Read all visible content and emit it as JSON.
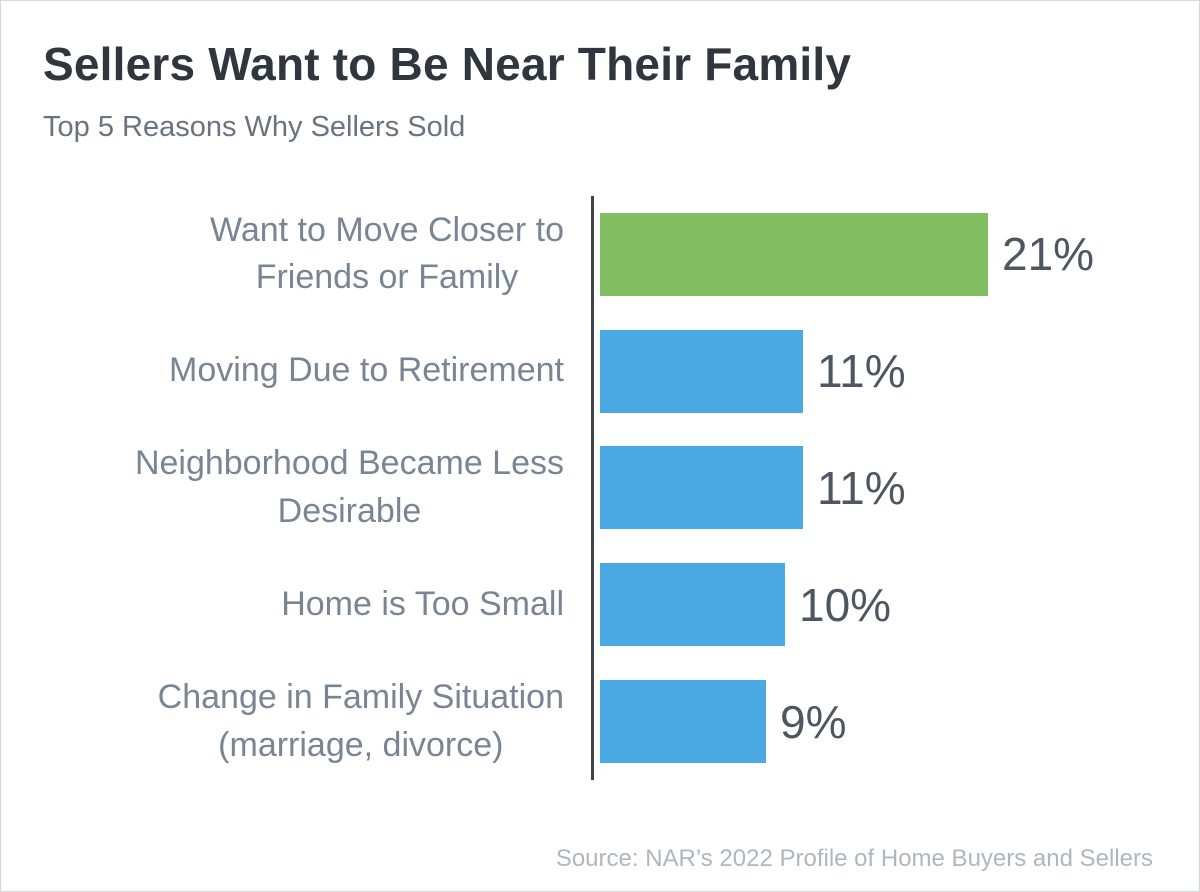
{
  "header": {
    "title": "Sellers Want to Be Near Their Family",
    "subtitle": "Top 5 Reasons Why Sellers Sold"
  },
  "footer": {
    "source": "Source: NAR’s 2022 Profile of Home Buyers and Sellers"
  },
  "colors": {
    "highlight_bar": "#82be62",
    "default_bar": "#4aa8e2",
    "title_text": "#2f363d",
    "subtitle_text": "#6a747e",
    "category_text": "#7a8594",
    "value_text": "#4d5661",
    "axis_line": "#3d444b",
    "source_text": "#afb7be",
    "background": "#ffffff"
  },
  "chart_data": {
    "type": "bar",
    "orientation": "horizontal",
    "title": "Sellers Want to Be Near Their Family",
    "subtitle": "Top 5 Reasons Why Sellers Sold",
    "categories": [
      "Want to Move Closer to\nFriends or Family",
      "Moving Due to Retirement",
      "Neighborhood Became Less\nDesirable",
      "Home is Too Small",
      "Change in Family Situation\n(marriage, divorce)"
    ],
    "values": [
      21,
      11,
      11,
      10,
      9
    ],
    "value_labels": [
      "21%",
      "11%",
      "11%",
      "10%",
      "9%"
    ],
    "bar_colors": [
      "#82be62",
      "#4aa8e2",
      "#4aa8e2",
      "#4aa8e2",
      "#4aa8e2"
    ],
    "xlim": [
      0,
      21
    ],
    "grid": false,
    "legend": false,
    "value_label_position": "right-of-bar",
    "source": "Source: NAR’s 2022 Profile of Home Buyers and Sellers"
  }
}
